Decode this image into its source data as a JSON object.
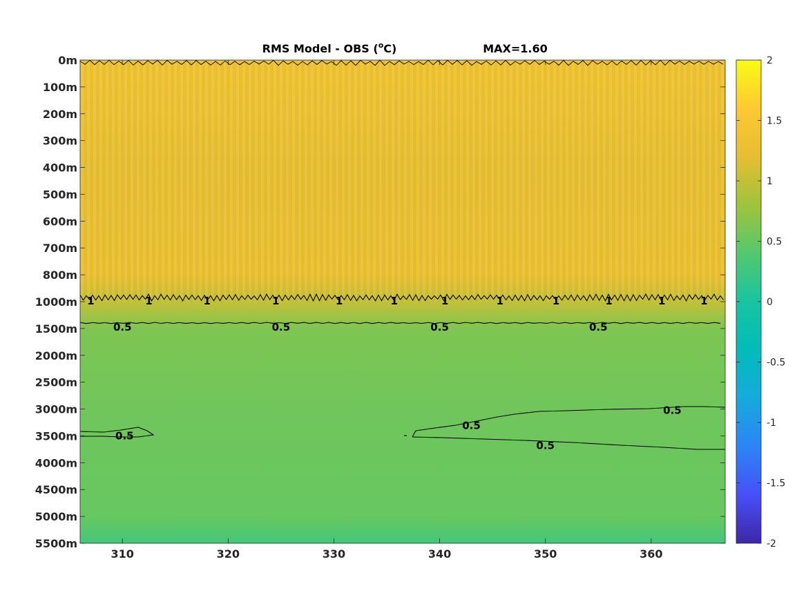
{
  "chart_data": {
    "type": "heatmap",
    "title": "RMS Model - OBS (°C)",
    "title_main": "RMS Model - OBS (",
    "title_sup": "o",
    "title_end": "C)",
    "max_label": "MAX=1.60",
    "xlabel": "",
    "ylabel": "",
    "x_ticks": [
      310,
      320,
      330,
      340,
      350,
      360
    ],
    "x_range": [
      306,
      367
    ],
    "y_tick_labels": [
      "0m",
      "100m",
      "200m",
      "300m",
      "400m",
      "500m",
      "600m",
      "700m",
      "800m",
      "1000m",
      "1500m",
      "2000m",
      "2500m",
      "3000m",
      "3500m",
      "4000m",
      "4500m",
      "5000m",
      "5500m"
    ],
    "colorbar": {
      "range": [
        -2,
        2
      ],
      "ticks": [
        "2",
        "1.5",
        "1",
        "0.5",
        "0",
        "-0.5",
        "-1",
        "-1.5",
        "-2"
      ],
      "colormap": "parula"
    },
    "field_profile": [
      {
        "depth_label": "0m",
        "value": 1.35
      },
      {
        "depth_label": "200m",
        "value": 1.3
      },
      {
        "depth_label": "400m",
        "value": 1.22
      },
      {
        "depth_label": "800m",
        "value": 1.28
      },
      {
        "depth_label": "1000m",
        "value": 1.0
      },
      {
        "depth_label": "1500m",
        "value": 0.62
      },
      {
        "depth_label": "3000m",
        "value": 0.55
      },
      {
        "depth_label": "5000m",
        "value": 0.5
      },
      {
        "depth_label": "5500m",
        "value": 0.3
      }
    ],
    "contour_labels": [
      {
        "text": "1",
        "x": 307.0,
        "y_label": "1000m"
      },
      {
        "text": "1",
        "x": 312.5,
        "y_label": "1000m"
      },
      {
        "text": "1",
        "x": 318.0,
        "y_label": "1000m"
      },
      {
        "text": "1",
        "x": 324.5,
        "y_label": "1000m"
      },
      {
        "text": "1",
        "x": 330.5,
        "y_label": "1000m"
      },
      {
        "text": "1",
        "x": 335.7,
        "y_label": "1000m"
      },
      {
        "text": "1",
        "x": 340.5,
        "y_label": "1000m"
      },
      {
        "text": "1",
        "x": 345.7,
        "y_label": "1000m"
      },
      {
        "text": "1",
        "x": 351.0,
        "y_label": "1000m"
      },
      {
        "text": "1",
        "x": 356.0,
        "y_label": "1000m"
      },
      {
        "text": "1",
        "x": 361.0,
        "y_label": "1000m"
      },
      {
        "text": "1",
        "x": 365.0,
        "y_label": "1000m"
      },
      {
        "text": "0.5",
        "x": 310.0,
        "y_label": "1500m"
      },
      {
        "text": "0.5",
        "x": 325.0,
        "y_label": "1500m"
      },
      {
        "text": "0.5",
        "x": 340.0,
        "y_label": "1500m"
      },
      {
        "text": "0.5",
        "x": 355.0,
        "y_label": "1500m"
      },
      {
        "text": "0.5",
        "x": 310.2,
        "y_label": "3500m"
      },
      {
        "text": "0.5",
        "x": 343.0,
        "y_label": "3500m"
      },
      {
        "text": "0.5",
        "x": 350.0,
        "y_label": "3500m"
      },
      {
        "text": "0.5",
        "x": 362.0,
        "y_label": "3000m"
      }
    ]
  }
}
